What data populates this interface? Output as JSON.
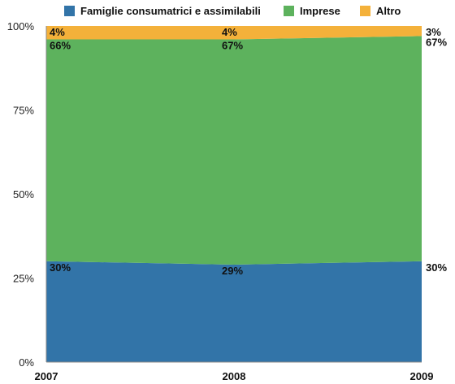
{
  "chart_data": {
    "type": "area",
    "stacked": true,
    "normalized": true,
    "x": [
      "2007",
      "2008",
      "2009"
    ],
    "series": [
      {
        "name": "Famiglie consumatrici e assimilabili",
        "values": [
          30,
          29,
          30
        ],
        "labels": [
          "30%",
          "29%",
          "30%"
        ],
        "color": "#3274a8"
      },
      {
        "name": "Imprese",
        "values": [
          66,
          67,
          67
        ],
        "labels": [
          "66%",
          "67%",
          "67%"
        ],
        "color": "#5db25d"
      },
      {
        "name": "Altro",
        "values": [
          4,
          4,
          3
        ],
        "labels": [
          "4%",
          "4%",
          "3%"
        ],
        "color": "#f4b13a"
      }
    ],
    "y_ticks": [
      "0%",
      "25%",
      "50%",
      "75%",
      "100%"
    ],
    "ylim": [
      0,
      100
    ],
    "legend_position": "top",
    "grid": false
  }
}
